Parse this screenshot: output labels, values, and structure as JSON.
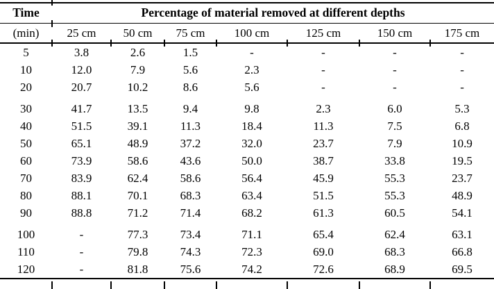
{
  "table": {
    "header": {
      "time_label": "Time",
      "time_unit": "(min)",
      "span_title": "Percentage of material removed at different depths",
      "depth_columns": [
        "25 cm",
        "50 cm",
        "75 cm",
        "100 cm",
        "125 cm",
        "150 cm",
        "175 cm"
      ]
    },
    "missing_marker": "-",
    "rows": [
      {
        "time": "5",
        "values": [
          "3.8",
          "2.6",
          "1.5",
          "-",
          "-",
          "-",
          "-"
        ]
      },
      {
        "time": "10",
        "values": [
          "12.0",
          "7.9",
          "5.6",
          "2.3",
          "-",
          "-",
          "-"
        ]
      },
      {
        "time": "20",
        "values": [
          "20.7",
          "10.2",
          "8.6",
          "5.6",
          "-",
          "-",
          "-"
        ]
      },
      {
        "time": "30",
        "values": [
          "41.7",
          "13.5",
          "9.4",
          "9.8",
          "2.3",
          "6.0",
          "5.3"
        ]
      },
      {
        "time": "40",
        "values": [
          "51.5",
          "39.1",
          "11.3",
          "18.4",
          "11.3",
          "7.5",
          "6.8"
        ]
      },
      {
        "time": "50",
        "values": [
          "65.1",
          "48.9",
          "37.2",
          "32.0",
          "23.7",
          "7.9",
          "10.9"
        ]
      },
      {
        "time": "60",
        "values": [
          "73.9",
          "58.6",
          "43.6",
          "50.0",
          "38.7",
          "33.8",
          "19.5"
        ]
      },
      {
        "time": "70",
        "values": [
          "83.9",
          "62.4",
          "58.6",
          "56.4",
          "45.9",
          "55.3",
          "23.7"
        ]
      },
      {
        "time": "80",
        "values": [
          "88.1",
          "70.1",
          "68.3",
          "63.4",
          "51.5",
          "55.3",
          "48.9"
        ]
      },
      {
        "time": "90",
        "values": [
          "88.8",
          "71.2",
          "71.4",
          "68.2",
          "61.3",
          "60.5",
          "54.1"
        ]
      },
      {
        "time": "100",
        "values": [
          "-",
          "77.3",
          "73.4",
          "71.1",
          "65.4",
          "62.4",
          "63.1"
        ]
      },
      {
        "time": "110",
        "values": [
          "-",
          "79.8",
          "74.3",
          "72.3",
          "69.0",
          "68.3",
          "66.8"
        ]
      },
      {
        "time": "120",
        "values": [
          "-",
          "81.8",
          "75.6",
          "74.2",
          "72.6",
          "68.9",
          "69.5"
        ]
      }
    ]
  },
  "colors": {
    "text": "#000000",
    "background": "#ffffff",
    "rule": "#000000"
  }
}
